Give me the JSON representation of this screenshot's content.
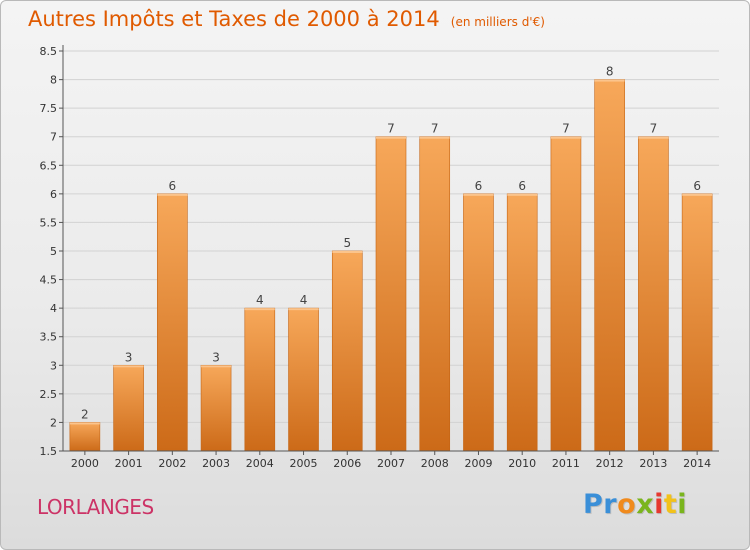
{
  "title": {
    "main": "Autres Impôts et Taxes de 2000 à 2014",
    "sub": "(en milliers d'€)"
  },
  "commune": "LORLANGES",
  "brand": {
    "letters": [
      "P",
      "r",
      "o",
      "x",
      "i",
      "t",
      "i"
    ],
    "colors": [
      "#3a8fd8",
      "#3a8fd8",
      "#f08a1c",
      "#7ab51d",
      "#e6382f",
      "#f2c21a",
      "#7ab51d"
    ]
  },
  "colors": {
    "bar_top": "#f7a85a",
    "bar_bottom": "#cc6a18",
    "title": "#e05a00",
    "commune": "#cc3366"
  },
  "chart_data": {
    "type": "bar",
    "categories": [
      "2000",
      "2001",
      "2002",
      "2003",
      "2004",
      "2005",
      "2006",
      "2007",
      "2008",
      "2009",
      "2010",
      "2011",
      "2012",
      "2013",
      "2014"
    ],
    "values": [
      2,
      3,
      6,
      3,
      4,
      4,
      5,
      7,
      7,
      6,
      6,
      7,
      8,
      7,
      6
    ],
    "data_labels": [
      "2",
      "3",
      "6",
      "3",
      "4",
      "4",
      "5",
      "7",
      "7",
      "6",
      "6",
      "7",
      "8",
      "7",
      "6"
    ],
    "yticks": [
      "1.5",
      "2",
      "2.5",
      "3",
      "3.5",
      "4",
      "4.5",
      "5",
      "5.5",
      "6",
      "6.5",
      "7",
      "7.5",
      "8",
      "8.5"
    ],
    "ylim": [
      1.5,
      8.5
    ],
    "xlabel": "",
    "ylabel": "",
    "grid": true
  }
}
